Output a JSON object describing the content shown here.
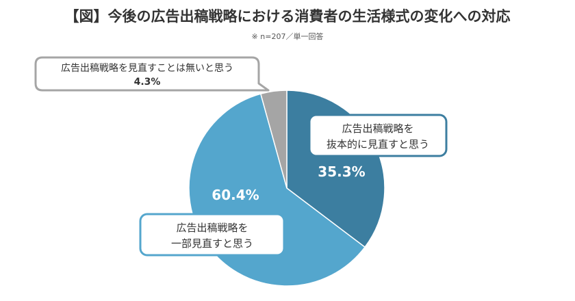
{
  "title": "【図】今後の広告出稿戦略における消費者の生活様式の変化への対応",
  "note": "※ n=207／単一回答",
  "chart_data": {
    "type": "pie",
    "slices": [
      {
        "label_lines": [
          "広告出稿戦略を",
          "抜本的に見直すと思う"
        ],
        "value": 35.3,
        "value_label": "35.3%",
        "color": "#3c7ea0"
      },
      {
        "label_lines": [
          "広告出稿戦略を",
          "一部見直すと思う"
        ],
        "value": 60.4,
        "value_label": "60.4%",
        "color": "#54a6cd"
      },
      {
        "label_lines": [
          "広告出稿戦略を見直すことは無いと思う"
        ],
        "value": 4.3,
        "value_label": "4.3%",
        "color": "#a5a5a5"
      }
    ]
  }
}
